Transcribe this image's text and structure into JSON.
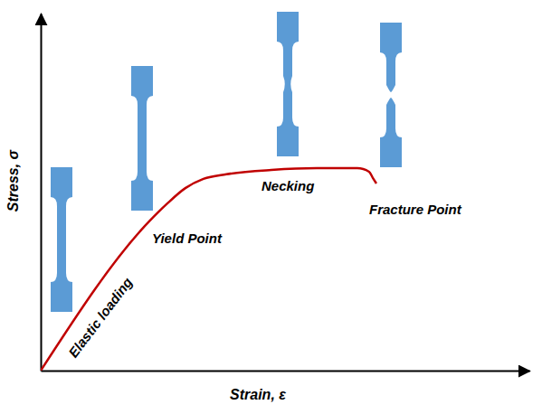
{
  "chart_data": {
    "type": "line",
    "x_label": "Strain, ε",
    "y_label": "Stress, σ",
    "annotations": [
      "Elastic loading",
      "Yield Point",
      "Necking",
      "Fracture Point"
    ],
    "x": [
      0,
      22.2,
      25.9,
      29.6,
      33.3,
      38.0,
      47.2,
      56.5,
      64.8,
      67.2,
      68.0,
      68.7
    ],
    "values": [
      0,
      41.8,
      46.8,
      51.1,
      53.7,
      55.0,
      56.2,
      56.7,
      56.7,
      55.7,
      53.9,
      52.4
    ],
    "color": "#c00000",
    "xlim": [
      0,
      100
    ],
    "ylim": [
      0,
      100
    ],
    "xticks": [],
    "yticks": [],
    "tick_labels": false,
    "grid": false
  }
}
